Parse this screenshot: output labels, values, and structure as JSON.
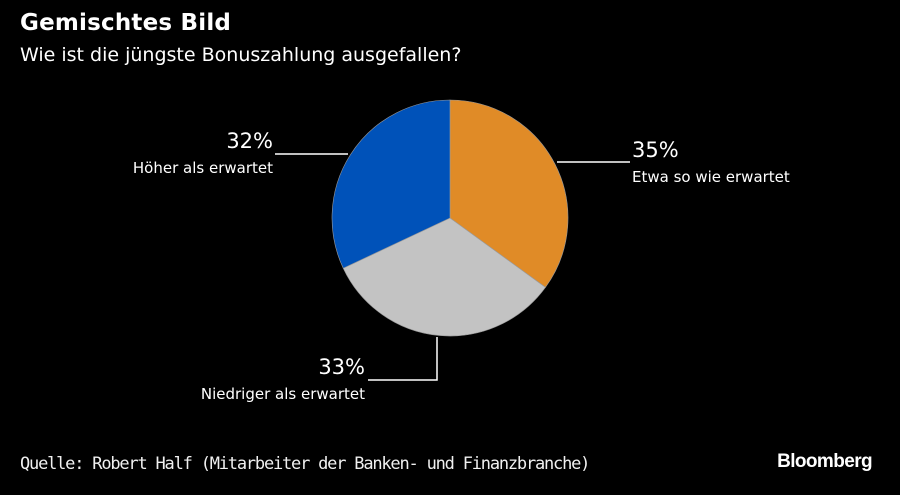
{
  "chart_data": {
    "type": "pie",
    "title": "Gemischtes Bild",
    "subtitle": "Wie ist die jüngste Bonuszahlung ausgefallen?",
    "start": "12 o'clock, clockwise",
    "slices": [
      {
        "label": "Etwa so wie erwartet",
        "value": 35,
        "value_label": "35%",
        "color": "#e08b27"
      },
      {
        "label": "Niedriger als erwartet",
        "value": 33,
        "value_label": "33%",
        "color": "#c3c3c3"
      },
      {
        "label": "Höher als erwartet",
        "value": 32,
        "value_label": "32%",
        "color": "#0052b9"
      }
    ]
  },
  "footer": {
    "source": "Quelle: Robert Half (Mitarbeiter der Banken- und Finanzbranche)",
    "brand": "Bloomberg"
  }
}
